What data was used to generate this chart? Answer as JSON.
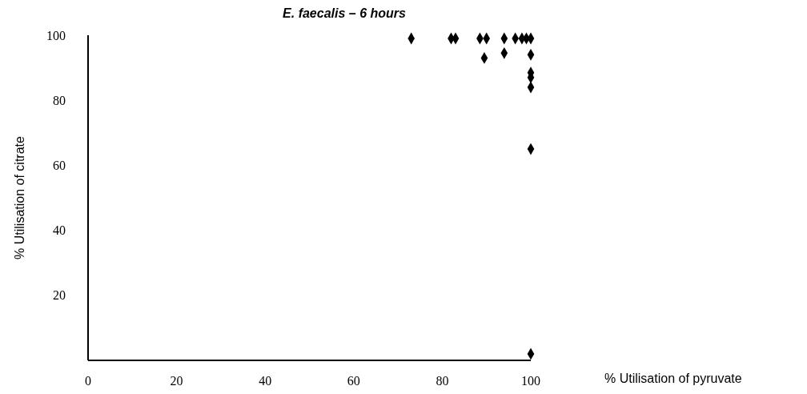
{
  "chart_data": {
    "type": "scatter",
    "title": "E. faecalis – 6 hours",
    "xlabel": "% Utilisation of pyruvate",
    "ylabel": "% Utilisation of citrate",
    "series": [
      {
        "color": "#000000",
        "x": [
          73,
          82,
          83,
          88.5,
          90,
          94,
          96.5,
          98,
          99,
          100,
          89.5,
          94,
          100,
          100,
          100,
          100,
          100,
          100
        ],
        "values": [
          99,
          99,
          99,
          99,
          99,
          99,
          99,
          99,
          99,
          99,
          93,
          94.5,
          94,
          88.5,
          87,
          84,
          65,
          2
        ]
      }
    ],
    "xlim": [
      0,
      100
    ],
    "xticks": [
      0,
      20,
      40,
      60,
      80,
      100
    ],
    "ylim": [
      0,
      100
    ],
    "yticks": [
      20,
      40,
      60,
      80,
      100
    ],
    "grid": false,
    "legend": false,
    "marker": "diamond"
  }
}
